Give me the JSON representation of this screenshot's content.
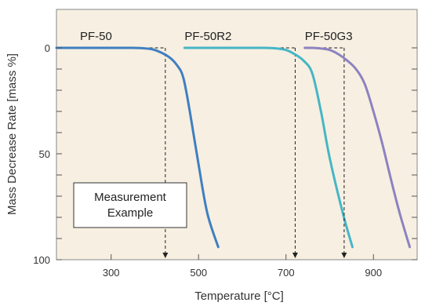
{
  "chart_data": {
    "type": "line",
    "xlabel": "Temperature [°C]",
    "ylabel": "Mass Decrease Rate [mass %]",
    "xlim": [
      175,
      1000
    ],
    "ylim": [
      0,
      100
    ],
    "y_inverted": true,
    "x_ticks": [
      300,
      500,
      700,
      900
    ],
    "x_ticklabels": [
      "300",
      "500",
      "700",
      "900"
    ],
    "y_ticks": [
      0,
      50,
      100
    ],
    "y_ticklabels": [
      "0",
      "50",
      "100"
    ],
    "y_minor_ticks": [
      10,
      20,
      30,
      40,
      60,
      70,
      80,
      90
    ],
    "grid": false,
    "annotation": "Measurement Example",
    "background": "#f7efe1",
    "series": [
      {
        "name": "PF-50",
        "color": "#3f7fc1",
        "marker_x": 424,
        "x": [
          175,
          200,
          250,
          300,
          350,
          380,
          400,
          430,
          450,
          465,
          480,
          500,
          520,
          545
        ],
        "y": [
          0,
          0,
          0,
          0,
          0,
          0.3,
          1,
          4,
          8,
          14,
          30,
          55,
          78,
          94
        ]
      },
      {
        "name": "PF-50R2",
        "color": "#45b6c6",
        "marker_x": 721,
        "x": [
          468,
          500,
          550,
          600,
          650,
          680,
          700,
          720,
          740,
          760,
          780,
          800,
          830,
          852
        ],
        "y": [
          0,
          0,
          0,
          0,
          0,
          0.3,
          1,
          3,
          6,
          12,
          30,
          52,
          78,
          94
        ]
      },
      {
        "name": "PF-50G3",
        "color": "#8c82c0",
        "marker_x": 833,
        "x": [
          743,
          760,
          780,
          800,
          820,
          840,
          860,
          880,
          900,
          920,
          940,
          960,
          983
        ],
        "y": [
          0,
          0,
          0.3,
          1,
          3,
          6,
          10,
          17,
          30,
          45,
          62,
          78,
          94
        ]
      }
    ]
  }
}
